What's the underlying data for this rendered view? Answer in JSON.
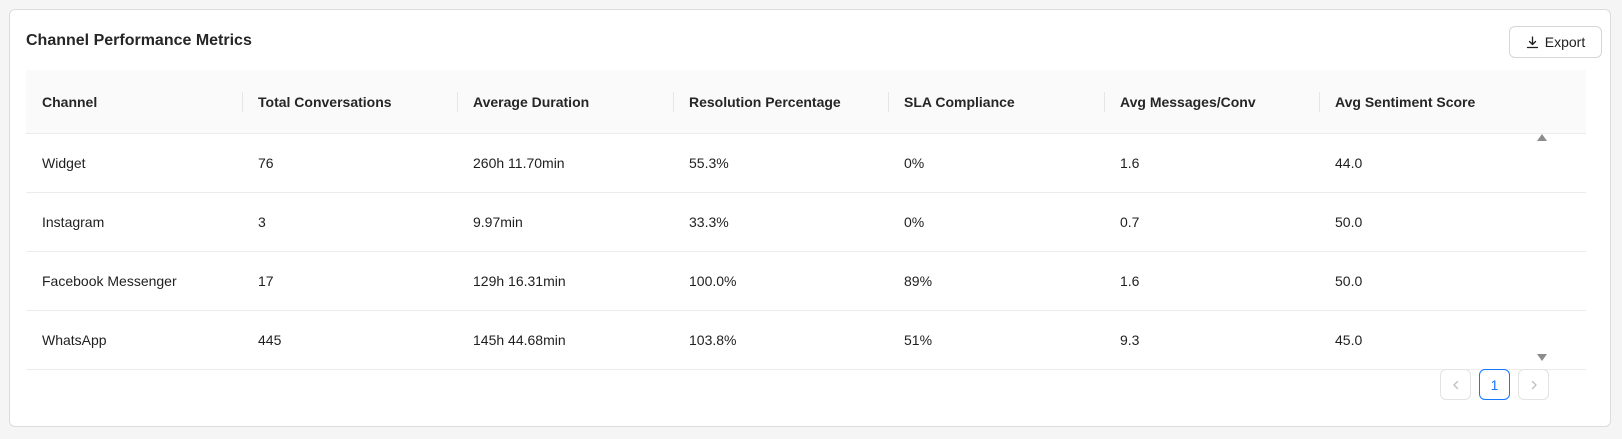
{
  "card": {
    "title": "Channel Performance Metrics",
    "export_label": "Export"
  },
  "table": {
    "columns": [
      "Channel",
      "Total Conversations",
      "Average Duration",
      "Resolution Percentage",
      "SLA Compliance",
      "Avg Messages/Conv",
      "Avg Sentiment Score"
    ],
    "rows": [
      [
        "Widget",
        "76",
        "260h 11.70min",
        "55.3%",
        "0%",
        "1.6",
        "44.0"
      ],
      [
        "Instagram",
        "3",
        "9.97min",
        "33.3%",
        "0%",
        "0.7",
        "50.0"
      ],
      [
        "Facebook Messenger",
        "17",
        "129h 16.31min",
        "100.0%",
        "89%",
        "1.6",
        "50.0"
      ],
      [
        "WhatsApp",
        "445",
        "145h 44.68min",
        "103.8%",
        "51%",
        "9.3",
        "45.0"
      ]
    ]
  },
  "pagination": {
    "prev_icon": "chevron-left-icon",
    "current_page": "1",
    "next_icon": "chevron-right-icon"
  },
  "colors": {
    "accent": "#1677ff",
    "border": "#dcdcdc",
    "header_bg": "#fafafa"
  }
}
